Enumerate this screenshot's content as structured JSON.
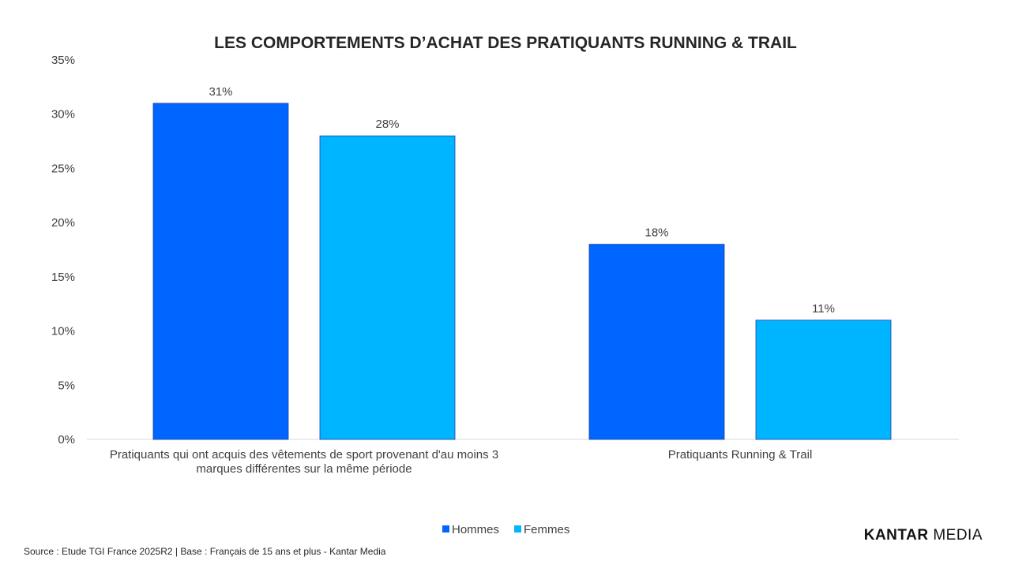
{
  "chart_data": {
    "type": "bar",
    "title": "LES COMPORTEMENTS D’ACHAT DES PRATIQUANTS RUNNING & TRAIL",
    "categories": [
      [
        "Pratiquants qui ont acquis des vêtements de sport provenant d'au moins 3",
        "marques différentes sur la même période"
      ],
      [
        "Pratiquants Running & Trail"
      ]
    ],
    "series": [
      {
        "name": "Hommes",
        "color": "#0066FF",
        "values": [
          31,
          18
        ]
      },
      {
        "name": "Femmes",
        "color": "#00B5FF",
        "values": [
          28,
          11
        ]
      }
    ],
    "value_labels": [
      [
        "31%",
        "18%"
      ],
      [
        "28%",
        "11%"
      ]
    ],
    "ylim": [
      0,
      35
    ],
    "yticks": [
      "0%",
      "5%",
      "10%",
      "15%",
      "20%",
      "25%",
      "30%",
      "35%"
    ],
    "ytick_values": [
      0,
      5,
      10,
      15,
      20,
      25,
      30,
      35
    ],
    "legend_position": "bottom",
    "grid": false
  },
  "footer": {
    "source": "Source : Etude TGI France 2025R2 | Base : Français de 15 ans et plus - Kantar Media",
    "brand_bold": "KANTAR",
    "brand_light": " MEDIA"
  }
}
